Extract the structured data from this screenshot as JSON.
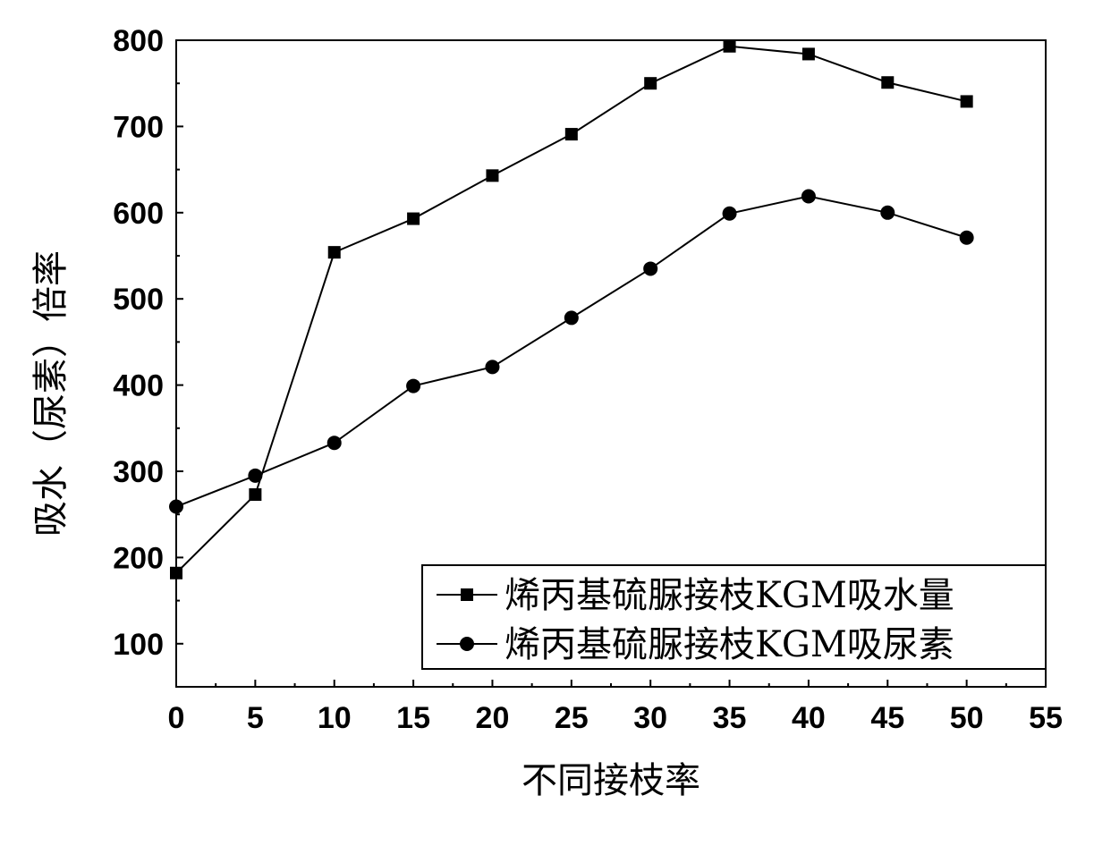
{
  "chart_data": {
    "type": "line",
    "title": "",
    "xlabel": "不同接枝率",
    "ylabel": "吸水（尿素）倍率",
    "xlim": [
      0,
      55
    ],
    "ylim": [
      50,
      800
    ],
    "xticks": [
      0,
      5,
      10,
      15,
      20,
      25,
      30,
      35,
      40,
      45,
      50,
      55
    ],
    "yticks": [
      100,
      200,
      300,
      400,
      500,
      600,
      700,
      800
    ],
    "grid": false,
    "legend_position": "bottom-right",
    "x": [
      0,
      5,
      10,
      15,
      20,
      25,
      30,
      35,
      40,
      45,
      50
    ],
    "series": [
      {
        "name": "烯丙基硫脲接枝KGM吸水量",
        "marker": "square",
        "color": "#000000",
        "values": [
          182,
          273,
          554,
          593,
          643,
          691,
          750,
          793,
          784,
          751,
          729
        ]
      },
      {
        "name": "烯丙基硫脲接枝KGM吸尿素",
        "marker": "circle",
        "color": "#000000",
        "values": [
          259,
          295,
          333,
          399,
          421,
          478,
          535,
          599,
          619,
          600,
          571
        ]
      }
    ]
  }
}
